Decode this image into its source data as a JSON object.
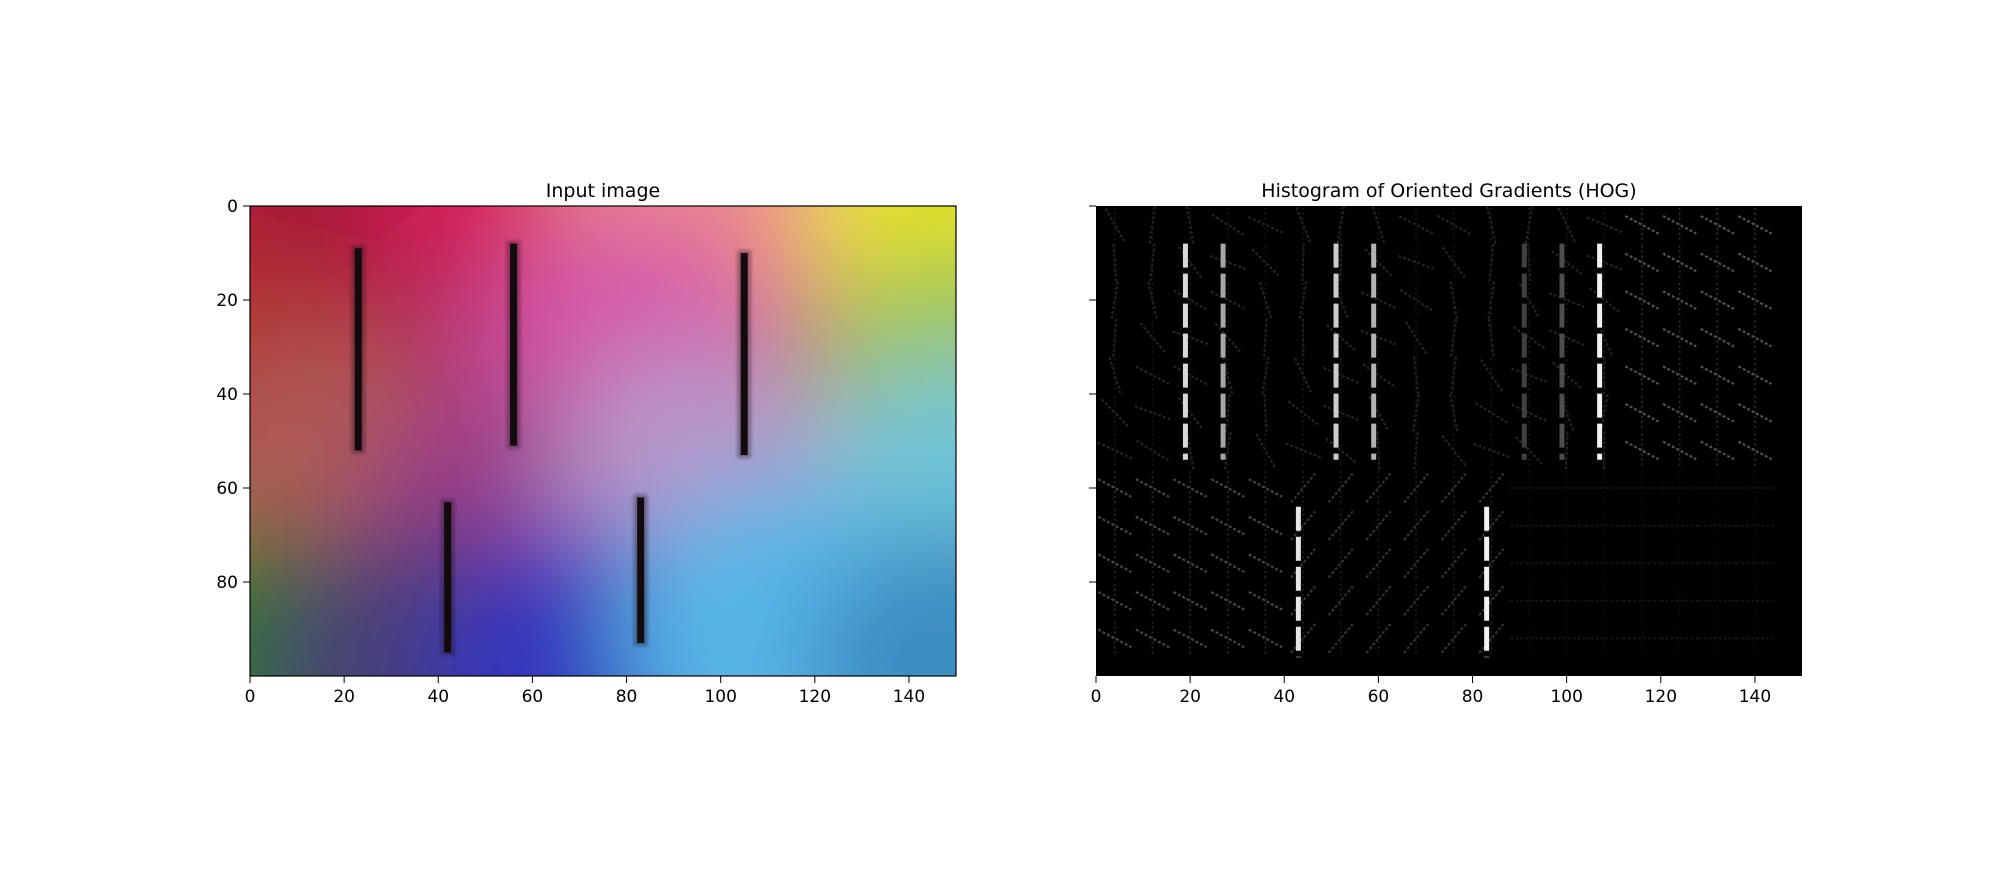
{
  "chart_data": [
    {
      "type": "image",
      "title": "Input image",
      "xlim": [
        0,
        150
      ],
      "ylim": [
        100,
        0
      ],
      "xticks": [
        0,
        20,
        40,
        60,
        80,
        100,
        120,
        140
      ],
      "yticks": [
        0,
        20,
        40,
        60,
        80
      ],
      "background_anchors": [
        {
          "x": 0,
          "y": 0,
          "color": "#b61e34"
        },
        {
          "x": 30,
          "y": 0,
          "color": "#a5173a"
        },
        {
          "x": 60,
          "y": 0,
          "color": "#d91e58"
        },
        {
          "x": 95,
          "y": 0,
          "color": "#eb8a8c"
        },
        {
          "x": 150,
          "y": 0,
          "color": "#e8e21e"
        },
        {
          "x": 0,
          "y": 40,
          "color": "#b03232"
        },
        {
          "x": 55,
          "y": 40,
          "color": "#b32f62"
        },
        {
          "x": 80,
          "y": 35,
          "color": "#d654a8"
        },
        {
          "x": 150,
          "y": 40,
          "color": "#9dc654"
        },
        {
          "x": 15,
          "y": 60,
          "color": "#ae5a54"
        },
        {
          "x": 55,
          "y": 70,
          "color": "#9a3a88"
        },
        {
          "x": 95,
          "y": 60,
          "color": "#b894c8"
        },
        {
          "x": 150,
          "y": 65,
          "color": "#70c4d8"
        },
        {
          "x": 0,
          "y": 100,
          "color": "#2e7418"
        },
        {
          "x": 35,
          "y": 100,
          "color": "#4a3f74"
        },
        {
          "x": 70,
          "y": 100,
          "color": "#3636be"
        },
        {
          "x": 110,
          "y": 90,
          "color": "#56b6e6"
        },
        {
          "x": 150,
          "y": 100,
          "color": "#3c8cc2"
        }
      ],
      "bars": [
        {
          "x": 23,
          "y0": 9,
          "y1": 52
        },
        {
          "x": 56,
          "y0": 8,
          "y1": 51
        },
        {
          "x": 105,
          "y0": 10,
          "y1": 53
        },
        {
          "x": 42,
          "y0": 63,
          "y1": 95
        },
        {
          "x": 83,
          "y0": 62,
          "y1": 93
        }
      ]
    },
    {
      "type": "image",
      "title": "Histogram of Oriented Gradients (HOG)",
      "xlim": [
        0,
        150
      ],
      "ylim": [
        100,
        0
      ],
      "xticks": [
        0,
        20,
        40,
        60,
        80,
        100,
        120,
        140
      ],
      "yticks": [
        0,
        20,
        40,
        60,
        80
      ],
      "cell_size": 8,
      "edges": [
        {
          "x": 19,
          "y0": 8,
          "y1": 54,
          "intensity": 0.85
        },
        {
          "x": 27,
          "y0": 8,
          "y1": 54,
          "intensity": 0.65
        },
        {
          "x": 51,
          "y0": 8,
          "y1": 54,
          "intensity": 0.8
        },
        {
          "x": 59,
          "y0": 8,
          "y1": 54,
          "intensity": 0.7
        },
        {
          "x": 107,
          "y0": 8,
          "y1": 54,
          "intensity": 0.95
        },
        {
          "x": 99,
          "y0": 8,
          "y1": 54,
          "intensity": 0.3
        },
        {
          "x": 91,
          "y0": 8,
          "y1": 54,
          "intensity": 0.25
        },
        {
          "x": 43,
          "y0": 64,
          "y1": 96,
          "intensity": 0.9
        },
        {
          "x": 83,
          "y0": 64,
          "y1": 96,
          "intensity": 0.95
        }
      ]
    }
  ]
}
